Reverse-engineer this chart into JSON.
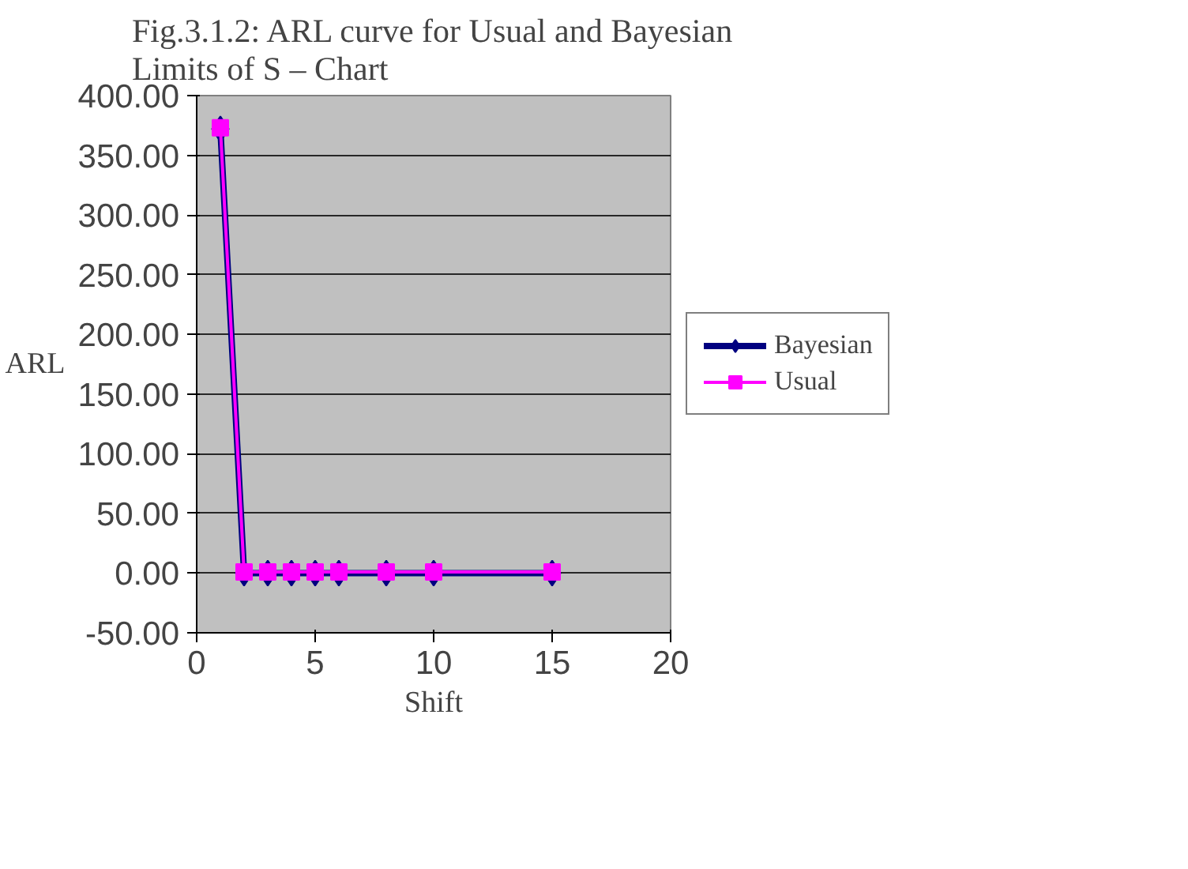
{
  "chart_data": {
    "type": "line",
    "title": "Fig.3.1.2: ARL curve for Usual and Bayesian\nLimits of S – Chart",
    "xlabel": "Shift",
    "ylabel": "ARL",
    "x": [
      1,
      2,
      3,
      4,
      5,
      6,
      8,
      10,
      15
    ],
    "series": [
      {
        "name": "Bayesian",
        "color": "#000080",
        "marker": "diamond",
        "values": [
          372,
          0,
          0,
          0,
          0,
          0,
          0,
          0,
          0
        ]
      },
      {
        "name": "Usual",
        "color": "#ff00ff",
        "marker": "square",
        "values": [
          373,
          1,
          1,
          1,
          1,
          1,
          1,
          1,
          1
        ]
      }
    ],
    "xlim": [
      0,
      20
    ],
    "xticks": [
      0,
      5,
      10,
      15,
      20
    ],
    "ylim": [
      -50,
      400
    ],
    "yticks": [
      {
        "value": -50,
        "label": "-50.00"
      },
      {
        "value": 0,
        "label": "0.00"
      },
      {
        "value": 50,
        "label": "50.00"
      },
      {
        "value": 100,
        "label": "100.00"
      },
      {
        "value": 150,
        "label": "150.00"
      },
      {
        "value": 200,
        "label": "200.00"
      },
      {
        "value": 250,
        "label": "250.00"
      },
      {
        "value": 300,
        "label": "300.00"
      },
      {
        "value": 350,
        "label": "350.00"
      },
      {
        "value": 400,
        "label": "400.00"
      }
    ],
    "grid": "y",
    "legend": "right",
    "line_style": "solid"
  }
}
